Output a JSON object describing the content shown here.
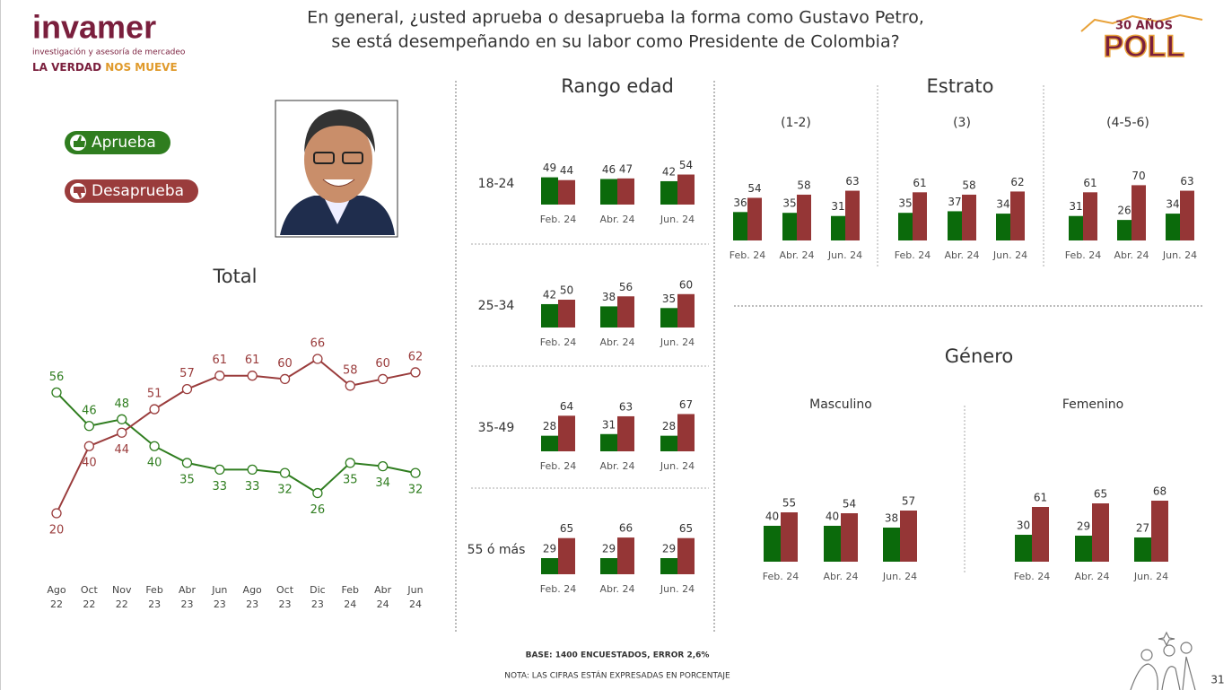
{
  "header": {
    "question_lines": [
      "En general, ¿usted aprueba o desaprueba la forma como Gustavo Petro,",
      "se está desempeñando en su labor como Presidente de Colombia?"
    ],
    "logo_name": "invamer",
    "logo_tagline": "investigación y asesoría de mercadeo",
    "logo_slogan_a": "LA VERDAD",
    "logo_slogan_b": "NOS MUEVE",
    "poll_years": "30 AÑOS",
    "poll_word": "POLL"
  },
  "footer": {
    "base": "BASE: 1400 ENCUESTADOS, ERROR 2,6%",
    "note": "NOTA: LAS CIFRAS ESTÁN EXPRESADAS EN PORCENTAJE",
    "page_number": "31"
  },
  "chart_data": [
    {
      "type": "line",
      "title": "Total",
      "categories": [
        "Ago 22",
        "Oct 22",
        "Nov 22",
        "Feb 23",
        "Abr 23",
        "Jun 23",
        "Ago 23",
        "Oct 23",
        "Dic 23",
        "Feb 24",
        "Abr 24",
        "Jun 24"
      ],
      "series": [
        {
          "name": "Aprueba",
          "color": "#2f7d1f",
          "values": [
            56,
            46,
            48,
            40,
            35,
            33,
            33,
            32,
            26,
            35,
            34,
            32
          ]
        },
        {
          "name": "Desaprueba",
          "color": "#9a3c3c",
          "values": [
            20,
            40,
            44,
            51,
            57,
            61,
            61,
            60,
            66,
            58,
            60,
            62
          ]
        }
      ]
    },
    {
      "type": "bar",
      "title": "Rango edad",
      "panels": [
        {
          "label": "18-24",
          "categories": [
            "Feb. 24",
            "Abr. 24",
            "Jun. 24"
          ],
          "series": [
            {
              "color": "#0b6a0b",
              "values": [
                49,
                46,
                42
              ]
            },
            {
              "color": "#953636",
              "values": [
                44,
                47,
                54
              ]
            }
          ]
        },
        {
          "label": "25-34",
          "categories": [
            "Feb. 24",
            "Abr. 24",
            "Jun. 24"
          ],
          "series": [
            {
              "color": "#0b6a0b",
              "values": [
                42,
                38,
                35
              ]
            },
            {
              "color": "#953636",
              "values": [
                50,
                56,
                60
              ]
            }
          ]
        },
        {
          "label": "35-49",
          "categories": [
            "Feb. 24",
            "Abr. 24",
            "Jun. 24"
          ],
          "series": [
            {
              "color": "#0b6a0b",
              "values": [
                28,
                31,
                28
              ]
            },
            {
              "color": "#953636",
              "values": [
                64,
                63,
                67
              ]
            }
          ]
        },
        {
          "label": "55 ó más",
          "categories": [
            "Feb. 24",
            "Abr. 24",
            "Jun. 24"
          ],
          "series": [
            {
              "color": "#0b6a0b",
              "values": [
                29,
                29,
                29
              ]
            },
            {
              "color": "#953636",
              "values": [
                65,
                66,
                65
              ]
            }
          ]
        }
      ]
    },
    {
      "type": "bar",
      "title": "Estrato",
      "panels": [
        {
          "label": "(1-2)",
          "categories": [
            "Feb. 24",
            "Abr. 24",
            "Jun. 24"
          ],
          "series": [
            {
              "color": "#0b6a0b",
              "values": [
                36,
                35,
                31
              ]
            },
            {
              "color": "#953636",
              "values": [
                54,
                58,
                63
              ]
            }
          ]
        },
        {
          "label": "(3)",
          "categories": [
            "Feb. 24",
            "Abr. 24",
            "Jun. 24"
          ],
          "series": [
            {
              "color": "#0b6a0b",
              "values": [
                35,
                37,
                34
              ]
            },
            {
              "color": "#953636",
              "values": [
                61,
                58,
                62
              ]
            }
          ]
        },
        {
          "label": "(4-5-6)",
          "categories": [
            "Feb. 24",
            "Abr. 24",
            "Jun. 24"
          ],
          "series": [
            {
              "color": "#0b6a0b",
              "values": [
                31,
                26,
                34
              ]
            },
            {
              "color": "#953636",
              "values": [
                61,
                70,
                63
              ]
            }
          ]
        }
      ]
    },
    {
      "type": "bar",
      "title": "Género",
      "panels": [
        {
          "label": "Masculino",
          "categories": [
            "Feb. 24",
            "Abr. 24",
            "Jun. 24"
          ],
          "series": [
            {
              "color": "#0b6a0b",
              "values": [
                40,
                40,
                38
              ]
            },
            {
              "color": "#953636",
              "values": [
                55,
                54,
                57
              ]
            }
          ]
        },
        {
          "label": "Femenino",
          "categories": [
            "Feb. 24",
            "Abr. 24",
            "Jun. 24"
          ],
          "series": [
            {
              "color": "#0b6a0b",
              "values": [
                30,
                29,
                27
              ]
            },
            {
              "color": "#953636",
              "values": [
                61,
                65,
                68
              ]
            }
          ]
        }
      ]
    }
  ]
}
